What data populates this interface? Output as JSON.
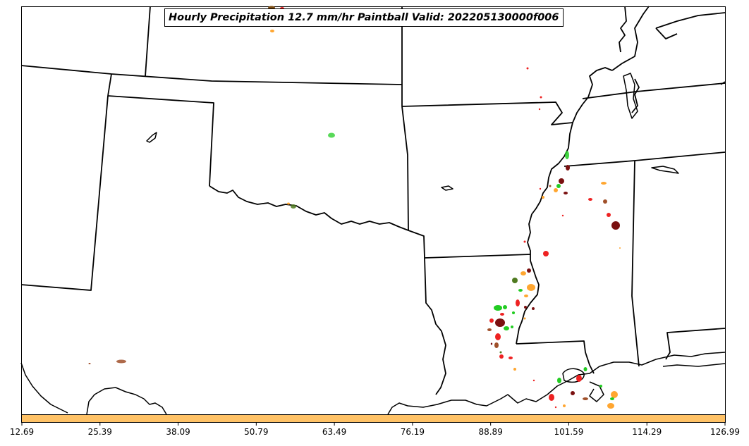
{
  "title": "Hourly Precipitation 12.7 mm/hr Paintball Valid: 202205130000f006",
  "colorbar": {
    "color": "#ffc266",
    "ticks": [
      "12.69",
      "25.39",
      "38.09",
      "50.79",
      "63.49",
      "76.19",
      "88.89",
      "101.59",
      "114.29",
      "126.99"
    ]
  },
  "colors": {
    "land_border": "#000000",
    "paintball_green": "#22cc22",
    "paintball_red": "#ee2222",
    "paintball_orange": "#ffa630",
    "paintball_darkred": "#7a1010",
    "paintball_brown": "#a0502a",
    "paintball_olive": "#4f7a20"
  }
}
